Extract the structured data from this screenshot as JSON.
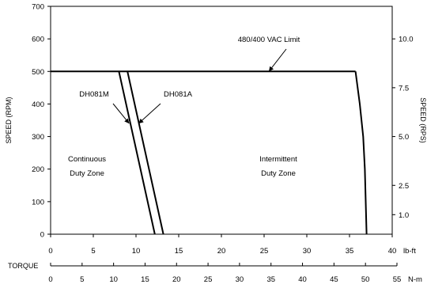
{
  "chart_data": {
    "type": "line",
    "xlabel": "TORQUE",
    "ylabel": "SPEED (RPM)",
    "y2label": "SPEED (RPS)",
    "x_unit_lbft": "lb-ft",
    "x_unit_nm": "N-m",
    "xlim_lbft": [
      0,
      40
    ],
    "xticks_lbft": [
      0,
      5,
      10,
      15,
      20,
      25,
      30,
      35,
      40
    ],
    "xlim_nm": [
      0,
      55
    ],
    "xticks_nm": [
      0,
      5,
      10,
      15,
      20,
      25,
      30,
      35,
      40,
      45,
      50,
      55
    ],
    "ylim": [
      0,
      700
    ],
    "yticks": [
      0,
      100,
      200,
      300,
      400,
      500,
      600,
      700
    ],
    "y2ticks": [
      1.0,
      2.5,
      5.0,
      7.5,
      10.0
    ],
    "y2ticks_labels": [
      "1.0",
      "2.5",
      "5.0",
      "7.5",
      "10.0"
    ],
    "grid": false,
    "series": [
      {
        "name": "DH081M",
        "x": [
          8.0,
          12.2
        ],
        "y": [
          500,
          0
        ]
      },
      {
        "name": "DH081A",
        "x": [
          9.0,
          13.2
        ],
        "y": [
          500,
          0
        ]
      },
      {
        "name": "480/400 VAC Limit",
        "x": [
          0,
          35.7
        ],
        "y": [
          500,
          500
        ]
      },
      {
        "x": [
          35.7,
          36.2,
          36.6,
          36.8,
          37.0
        ],
        "y": [
          500,
          400,
          300,
          200,
          0
        ]
      }
    ],
    "annotations": {
      "vac_limit": "480/400 VAC Limit",
      "continuous_line1": "Continuous",
      "continuous_line2": "Duty Zone",
      "intermittent_line1": "Intermittent",
      "intermittent_line2": "Duty Zone",
      "dh081m": "DH081M",
      "dh081a": "DH081A"
    }
  }
}
